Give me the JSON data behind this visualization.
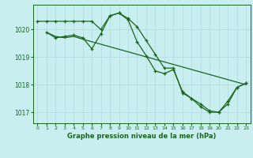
{
  "title": "Graphe pression niveau de la mer (hPa)",
  "bg_color": "#c8eef0",
  "grid_color": "#b0d8dc",
  "line_color": "#1a6620",
  "xlim": [
    -0.5,
    23.5
  ],
  "ylim": [
    1016.6,
    1020.9
  ],
  "yticks": [
    1017,
    1018,
    1019,
    1020
  ],
  "xticks": [
    0,
    1,
    2,
    3,
    4,
    5,
    6,
    7,
    8,
    9,
    10,
    11,
    12,
    13,
    14,
    15,
    16,
    17,
    18,
    19,
    20,
    21,
    22,
    23
  ],
  "series1_x": [
    0,
    1,
    2,
    3,
    4,
    5,
    6,
    7,
    8,
    9,
    10,
    11,
    12,
    13,
    14,
    15,
    16,
    17,
    18,
    19,
    20,
    21,
    22,
    23
  ],
  "series1_y": [
    1020.3,
    1020.3,
    1020.3,
    1020.3,
    1020.3,
    1020.3,
    1020.3,
    1020.0,
    1020.5,
    1020.6,
    1020.4,
    1020.1,
    1019.6,
    1019.1,
    1018.6,
    1018.6,
    1017.7,
    1017.5,
    1017.2,
    1017.0,
    1017.0,
    1017.3,
    1017.9,
    1018.05
  ],
  "series2_x": [
    1,
    2,
    3,
    4,
    5,
    6,
    7,
    8,
    9,
    10,
    11,
    12,
    13,
    14,
    15,
    16,
    17,
    18,
    19,
    20,
    21,
    22,
    23
  ],
  "series2_y": [
    1019.9,
    1019.7,
    1019.75,
    1019.8,
    1019.7,
    1019.3,
    1019.85,
    1020.5,
    1020.6,
    1020.35,
    1019.55,
    1019.05,
    1018.5,
    1018.4,
    1018.55,
    1017.75,
    1017.5,
    1017.3,
    1017.05,
    1017.0,
    1017.4,
    1017.9,
    1018.05
  ],
  "series3_x": [
    1,
    2,
    3,
    4,
    5,
    23
  ],
  "series3_y": [
    1019.9,
    1019.75,
    1019.7,
    1019.75,
    1019.65,
    1018.0
  ]
}
